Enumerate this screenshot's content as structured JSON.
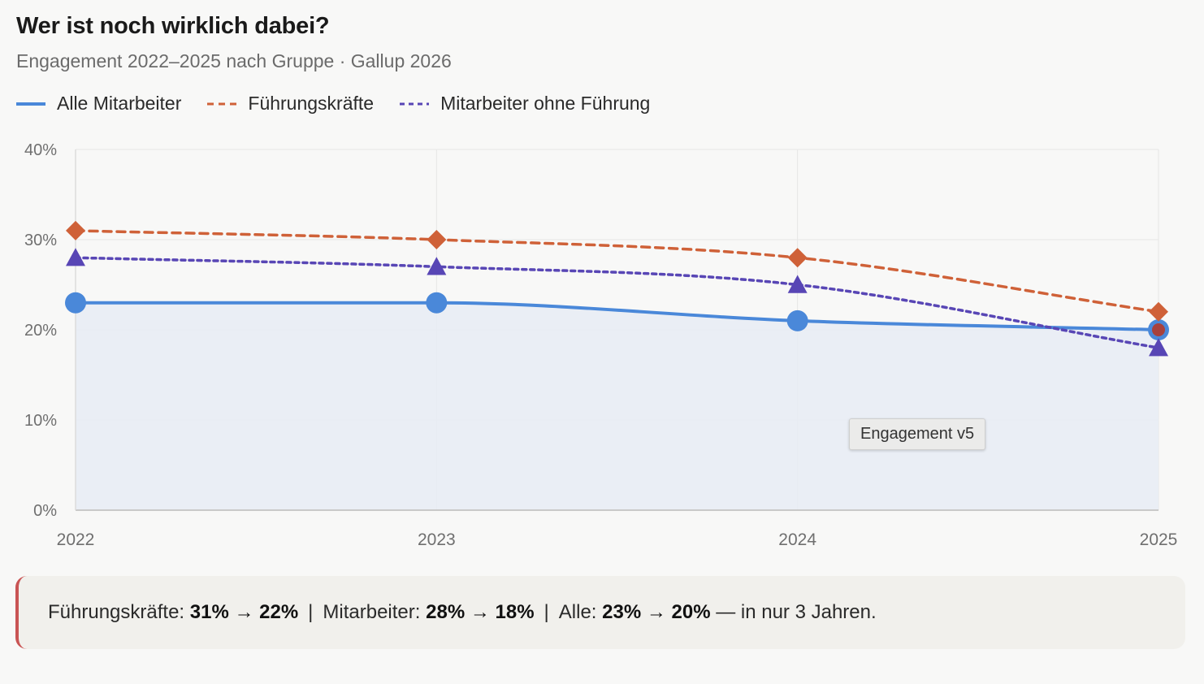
{
  "header": {
    "title": "Wer ist noch wirklich dabei?",
    "subtitle": "Engagement 2022–2025 nach Gruppe · Gallup 2026"
  },
  "colors": {
    "all": "#4a88d9",
    "leaders": "#cf6138",
    "employees": "#5846b5",
    "area": "#e8ecf4",
    "grid": "#e6e6e6",
    "accent": "#c95454"
  },
  "chart_data": {
    "type": "line",
    "title": "Wer ist noch wirklich dabei?",
    "subtitle": "Engagement 2022–2025 nach Gruppe · Gallup 2026",
    "categories": [
      "2022",
      "2023",
      "2024",
      "2025"
    ],
    "series": [
      {
        "name": "Alle Mitarbeiter",
        "values": [
          23,
          23,
          21,
          20
        ],
        "style": "solid",
        "marker": "circle",
        "fill": true
      },
      {
        "name": "Führungskräfte",
        "values": [
          31,
          30,
          28,
          22
        ],
        "style": "dashed",
        "marker": "diamond"
      },
      {
        "name": "Mitarbeiter ohne Führung",
        "values": [
          28,
          27,
          25,
          18
        ],
        "style": "dotted",
        "marker": "triangle"
      }
    ],
    "ylim": [
      0,
      40
    ],
    "yticks": [
      0,
      10,
      20,
      30,
      40
    ],
    "ytick_labels": [
      "0%",
      "10%",
      "20%",
      "30%",
      "40%"
    ],
    "xlabel": "",
    "ylabel": "",
    "grid": true,
    "legend_position": "top-left",
    "tooltip": "Engagement v5"
  },
  "callout": {
    "leaders_label": "Führungskräfte:",
    "leaders_value": "31% → 22%",
    "employees_label": "Mitarbeiter:",
    "employees_value": "28% → 18%",
    "all_label": "Alle:",
    "all_value": "23% → 20%",
    "separator": "|",
    "suffix": "— in nur 3 Jahren."
  }
}
